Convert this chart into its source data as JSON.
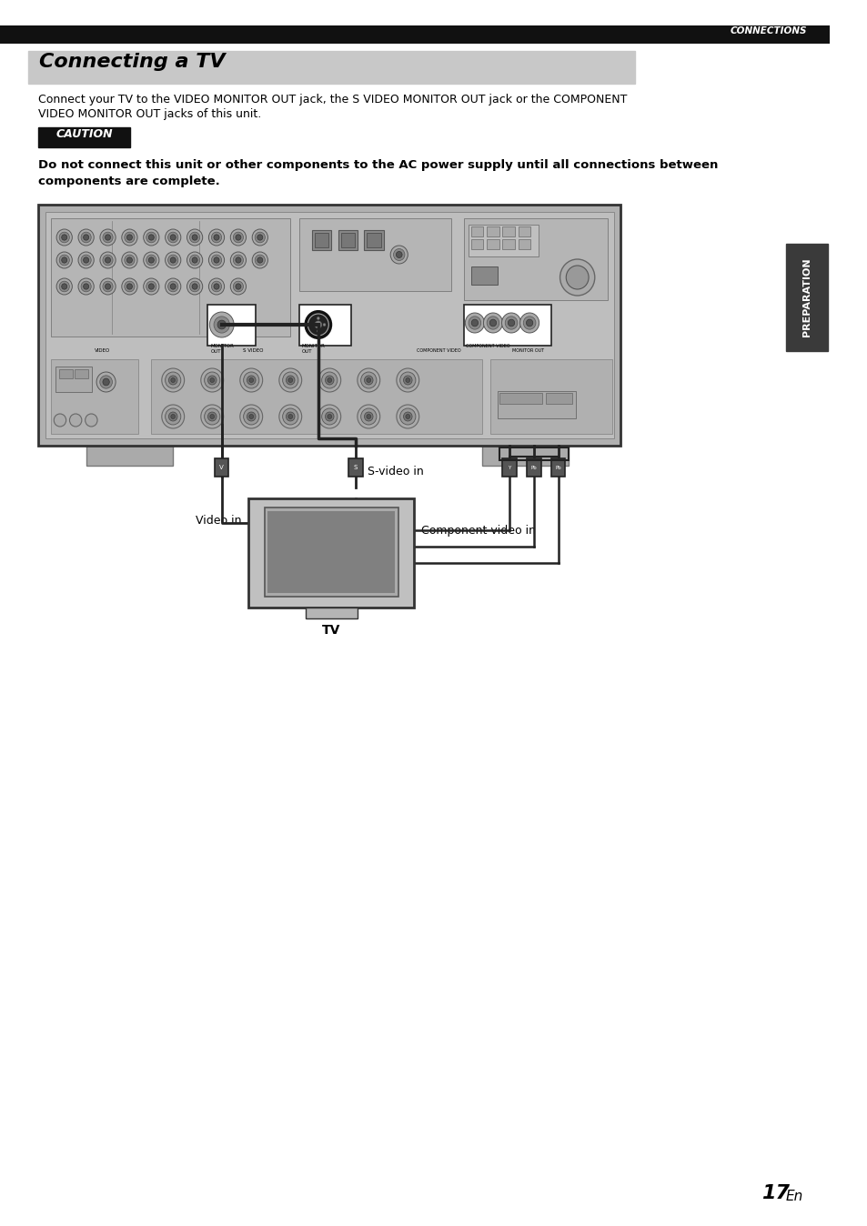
{
  "page_title": "Connecting a TV",
  "section_label": "CONNECTIONS",
  "body_text1": "Connect your TV to the VIDEO MONITOR OUT jack, the S VIDEO MONITOR OUT jack or the COMPONENT",
  "body_text2": "VIDEO MONITOR OUT jacks of this unit.",
  "caution_label": "CAUTION",
  "warning_text1": "Do not connect this unit or other components to the AC power supply until all connections between",
  "warning_text2": "components are complete.",
  "label_s_video": "S-video in",
  "label_video": "Video in",
  "label_component": "Component video in",
  "label_tv": "TV",
  "sidebar_text": "PREPARATION",
  "page_number": "17",
  "page_number_en": "En",
  "bg_color": "#ffffff",
  "header_color": "#111111",
  "title_bg": "#c8c8c8",
  "caution_bg": "#111111",
  "receiver_face": "#b0b0b0",
  "receiver_inner": "#bebebe",
  "receiver_border": "#333333",
  "sidebar_bg": "#3a3a3a",
  "cable_color": "#222222",
  "connector_highlight": "#e0e0e0",
  "connector_dark": "#2a2a2a",
  "rca_outer": "#888888",
  "rca_inner": "#555555",
  "section_bg_color": "#c0c0c0"
}
